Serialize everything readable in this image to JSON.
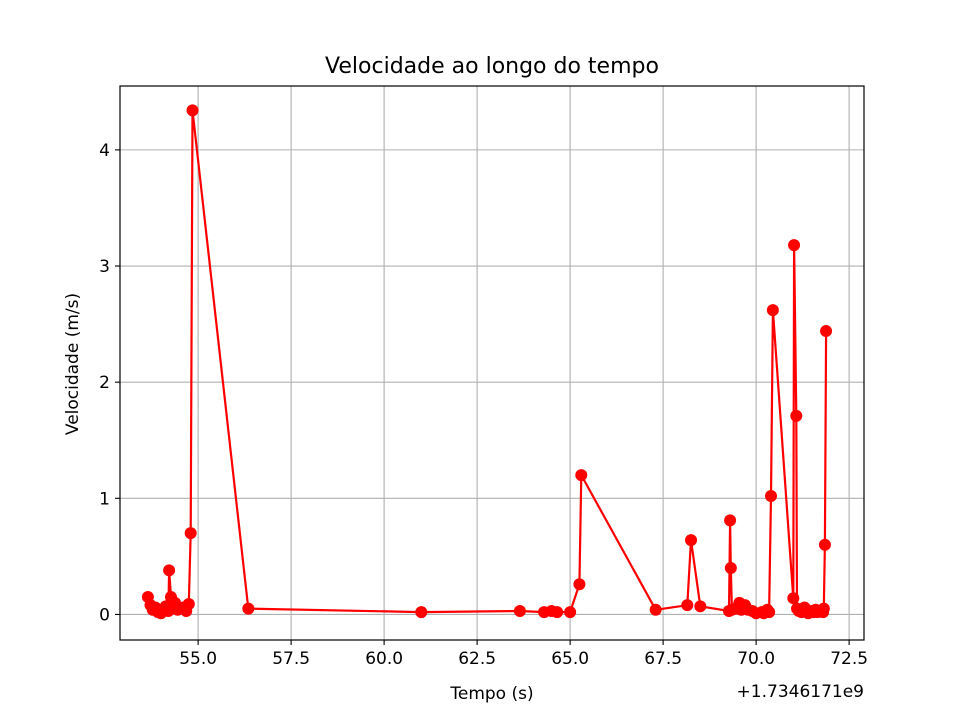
{
  "chart_data": {
    "type": "line",
    "title": "Velocidade ao longo do tempo",
    "xlabel": "Tempo (s)",
    "ylabel": "Velocidade (m/s)",
    "x_offset_label": "+1.7346171e9",
    "xlim": [
      52.9,
      72.9
    ],
    "ylim": [
      -0.22,
      4.55
    ],
    "xticks": [
      55.0,
      57.5,
      60.0,
      62.5,
      65.0,
      67.5,
      70.0,
      72.5
    ],
    "xtick_labels": [
      "55.0",
      "57.5",
      "60.0",
      "62.5",
      "65.0",
      "67.5",
      "70.0",
      "72.5"
    ],
    "yticks": [
      0,
      1,
      2,
      3,
      4
    ],
    "ytick_labels": [
      "0",
      "1",
      "2",
      "3",
      "4"
    ],
    "grid": true,
    "legend": "none",
    "series": [
      {
        "color": "#ff0000",
        "marker": "circle",
        "x": [
          53.65,
          53.72,
          53.78,
          53.85,
          53.92,
          54.0,
          54.07,
          54.13,
          54.2,
          54.22,
          54.27,
          54.33,
          54.38,
          54.45,
          54.6,
          54.68,
          54.75,
          54.8,
          54.85,
          56.35,
          61.0,
          63.65,
          64.3,
          64.5,
          64.65,
          65.0,
          65.25,
          65.3,
          67.3,
          68.15,
          68.25,
          68.5,
          69.27,
          69.3,
          69.32,
          69.35,
          69.45,
          69.55,
          69.6,
          69.7,
          69.78,
          69.9,
          70.0,
          70.15,
          70.2,
          70.3,
          70.35,
          70.4,
          70.45,
          71.0,
          71.02,
          71.08,
          71.1,
          71.15,
          71.22,
          71.3,
          71.4,
          71.5,
          71.55,
          71.6,
          71.65,
          71.72,
          71.8,
          71.82,
          71.85,
          71.88
        ],
        "y": [
          0.15,
          0.08,
          0.04,
          0.06,
          0.02,
          0.01,
          0.03,
          0.07,
          0.03,
          0.38,
          0.15,
          0.06,
          0.1,
          0.04,
          0.06,
          0.03,
          0.09,
          0.7,
          4.34,
          0.05,
          0.02,
          0.03,
          0.02,
          0.03,
          0.02,
          0.02,
          0.26,
          1.2,
          0.04,
          0.08,
          0.64,
          0.07,
          0.03,
          0.81,
          0.4,
          0.04,
          0.05,
          0.1,
          0.04,
          0.08,
          0.04,
          0.03,
          0.01,
          0.02,
          0.01,
          0.04,
          0.02,
          1.02,
          2.62,
          0.14,
          3.18,
          1.71,
          0.05,
          0.03,
          0.02,
          0.06,
          0.01,
          0.03,
          0.02,
          0.04,
          0.02,
          0.03,
          0.02,
          0.05,
          0.6,
          2.44
        ]
      }
    ]
  }
}
